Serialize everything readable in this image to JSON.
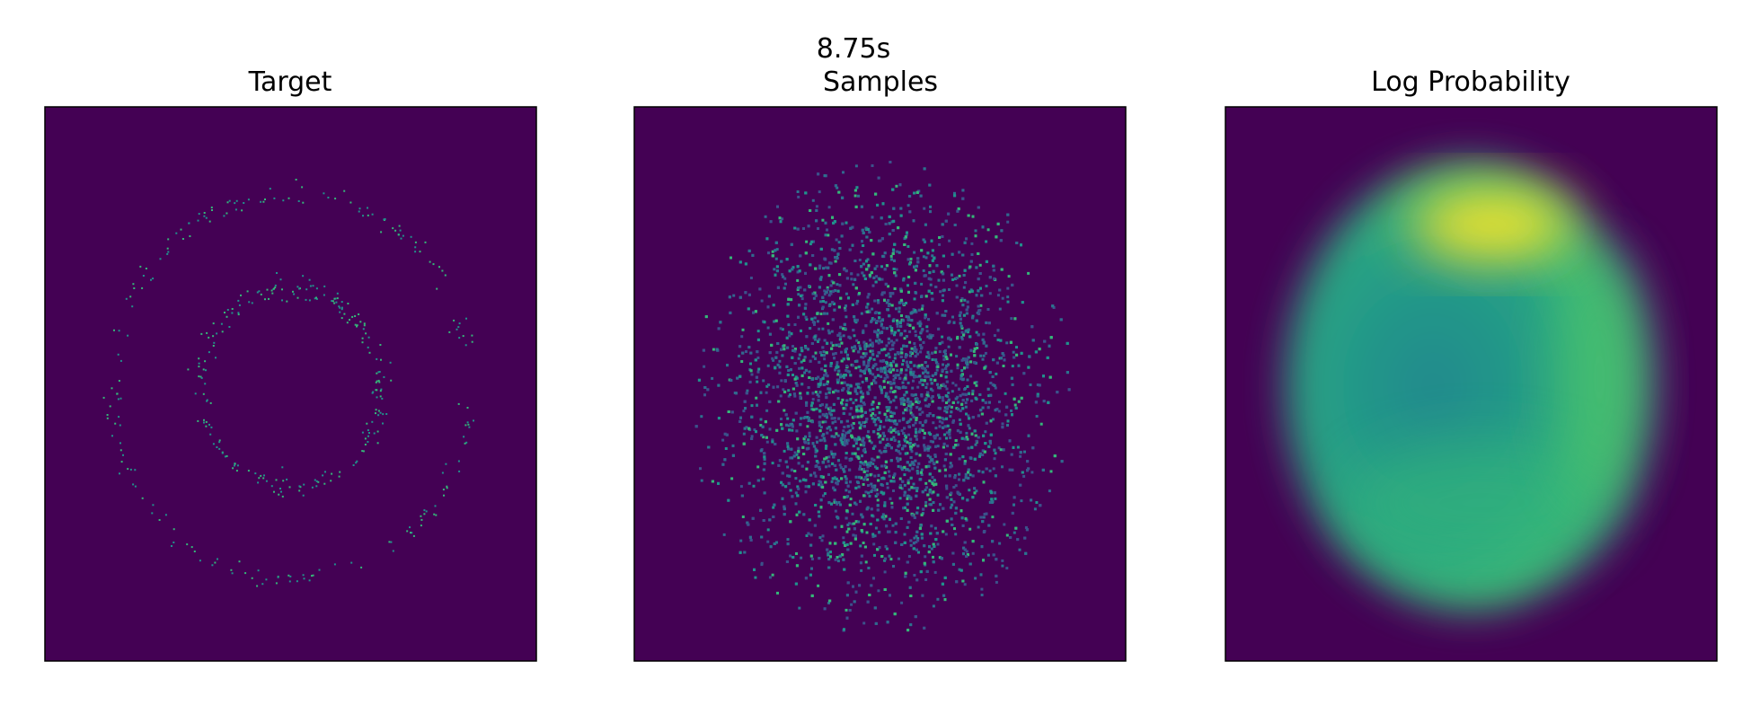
{
  "figure": {
    "suptitle": "8.75s",
    "panels": [
      {
        "title": "Target"
      },
      {
        "title": "Samples"
      },
      {
        "title": "Log Probability"
      }
    ]
  }
}
